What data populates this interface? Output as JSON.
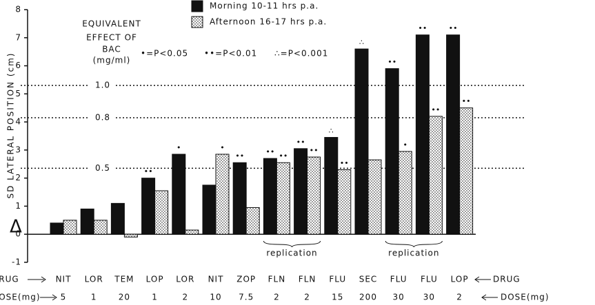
{
  "chart_data": {
    "type": "bar",
    "y_label_symbol": "Δ",
    "y_label": "SD LATERAL POSITION (cm)",
    "annotation": [
      "EQUIVALENT",
      "EFFECT OF",
      "BAC",
      "(mg/ml)"
    ],
    "sig_legend": [
      "•=P<0.05",
      "••=P<0.01",
      "∴=P<0.001"
    ],
    "categories": [
      "NIT",
      "LOR",
      "TEM",
      "LOP",
      "LOR",
      "NIT",
      "ZOP",
      "FLN",
      "FLN",
      "FLU",
      "SEC",
      "FLU",
      "FLU",
      "LOP"
    ],
    "doses": [
      "5",
      "1",
      "20",
      "1",
      "2",
      "10",
      "7.5",
      "2",
      "2",
      "15",
      "200",
      "30",
      "30",
      "2"
    ],
    "row_labels": {
      "drug": "DRUG",
      "dose": "DOSE(mg)"
    },
    "series": [
      {
        "name": "Morning 10-11 hrs p.a.",
        "color": "#111111",
        "pattern": "solid",
        "values": [
          0.4,
          0.9,
          1.1,
          2.0,
          2.85,
          1.75,
          2.55,
          2.7,
          3.05,
          3.45,
          6.6,
          5.9,
          7.1,
          7.1
        ],
        "significance": [
          null,
          null,
          null,
          "••",
          "•",
          null,
          "••",
          "••",
          "••",
          "∴",
          "∴",
          "••",
          "••",
          "••"
        ]
      },
      {
        "name": "Afternoon 16-17 hrs p.a.",
        "color": "#555555",
        "pattern": "stipple",
        "values": [
          0.5,
          0.5,
          -0.1,
          1.55,
          0.15,
          2.85,
          0.95,
          2.55,
          2.75,
          2.3,
          2.65,
          2.95,
          4.2,
          4.5
        ],
        "significance": [
          null,
          null,
          null,
          null,
          null,
          "•",
          null,
          "••",
          "••",
          "••",
          null,
          "•",
          "••",
          "••"
        ]
      }
    ],
    "reference_lines": [
      {
        "value": 5.3,
        "label": "1.0"
      },
      {
        "value": 4.15,
        "label": "0.8"
      },
      {
        "value": 2.35,
        "label": "0.5"
      }
    ],
    "replication": [
      {
        "label": "replication",
        "from": 7,
        "to": 8
      },
      {
        "label": "replication",
        "from": 11,
        "to": 12
      }
    ],
    "ylim": [
      -1,
      8
    ],
    "yticks": [
      -1,
      0,
      1,
      2,
      3,
      4,
      5,
      6,
      7,
      8
    ]
  }
}
